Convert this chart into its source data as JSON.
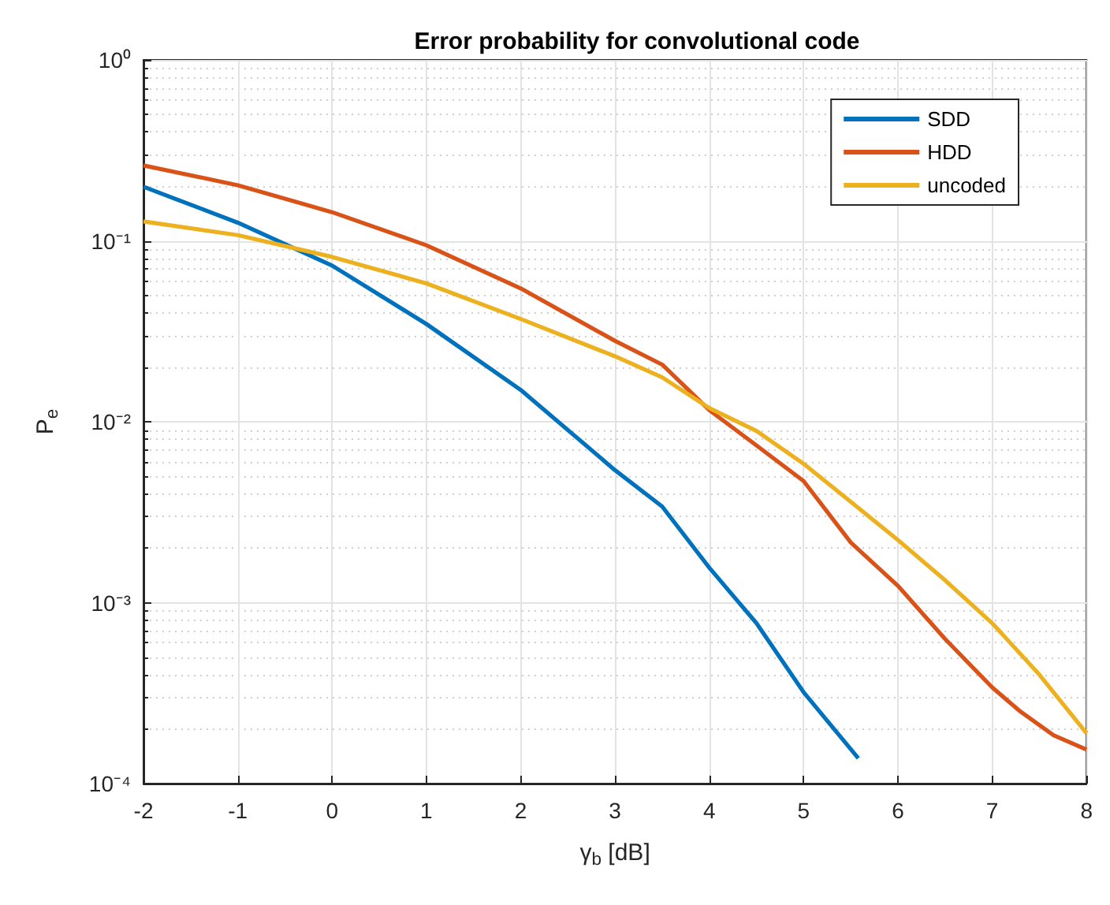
{
  "chart_data": {
    "type": "line",
    "title": "Error probability for convolutional code",
    "xlabel": "γ$_{b}$ [dB]",
    "ylabel": "P$_{e}$",
    "series": [
      {
        "name": "SDD",
        "color": "#0072bd",
        "x": [
          -2,
          -1,
          0,
          1,
          2,
          3,
          3.5,
          4,
          4.5,
          5,
          5.58
        ],
        "values": [
          0.199,
          0.126,
          0.073,
          0.0347,
          0.015,
          0.0054,
          0.0034,
          0.00156,
          0.00077,
          0.00032,
          0.000138
        ]
      },
      {
        "name": "HDD",
        "color": "#d95319",
        "x": [
          -2,
          -1,
          0,
          1,
          2,
          3,
          3.5,
          4,
          4.5,
          5,
          5.5,
          6,
          6.5,
          7,
          7.3,
          7.65,
          8
        ],
        "values": [
          0.261,
          0.203,
          0.144,
          0.0945,
          0.0546,
          0.028,
          0.0207,
          0.0116,
          0.0074,
          0.0047,
          0.00215,
          0.00124,
          0.00063,
          0.00034,
          0.00025,
          0.000185,
          0.000154
        ]
      },
      {
        "name": "uncoded",
        "color": "#edb120",
        "x": [
          -2,
          -1,
          0,
          1,
          2,
          3,
          3.5,
          4,
          4.5,
          5,
          5.5,
          6,
          6.5,
          7,
          7.5,
          8
        ],
        "values": [
          0.128,
          0.1075,
          0.0815,
          0.0582,
          0.037,
          0.023,
          0.0176,
          0.0119,
          0.0089,
          0.00586,
          0.00361,
          0.00222,
          0.00133,
          0.00077,
          0.0004,
          0.00019
        ]
      }
    ],
    "xlim": [
      -2,
      8
    ],
    "xticks": [
      -2,
      -1,
      0,
      1,
      2,
      3,
      4,
      5,
      6,
      7,
      8
    ],
    "ylim": [
      0.0001,
      1
    ],
    "yticks": [
      {
        "value": 0.0001,
        "label": "10⁻⁴"
      },
      {
        "value": 0.001,
        "label": "10⁻³"
      },
      {
        "value": 0.01,
        "label": "10⁻²"
      },
      {
        "value": 0.1,
        "label": "10⁻¹"
      },
      {
        "value": 1,
        "label": "10⁰"
      }
    ],
    "log": "y",
    "grid": true,
    "legend": "top right",
    "marker": "none",
    "line_style": "solid"
  }
}
